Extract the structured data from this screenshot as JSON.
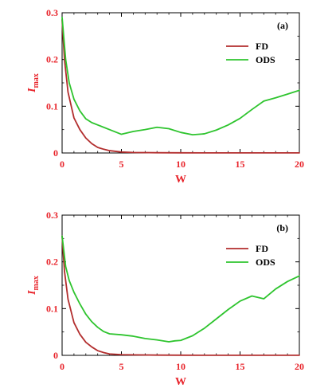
{
  "colors": {
    "axis": "#e8232a",
    "fd": "#b22d2d",
    "ods": "#2ec42e",
    "frame": "#000000"
  },
  "chart_data": [
    {
      "type": "line",
      "panel_label": "(a)",
      "xlabel": "W",
      "ylabel_main": "I",
      "ylabel_sub": "max",
      "xlim": [
        0,
        20
      ],
      "ylim": [
        0,
        0.3
      ],
      "xticks": [
        0,
        5,
        10,
        15,
        20
      ],
      "yticks": [
        0,
        0.1,
        0.2,
        0.3
      ],
      "xtick_labels": [
        "0",
        "5",
        "10",
        "15",
        "20"
      ],
      "ytick_labels": [
        "0",
        "0.1",
        "0.2",
        "0.3"
      ],
      "legend_position": "top-right",
      "series": [
        {
          "name": "FD",
          "color_key": "fd",
          "x": [
            0,
            0.2,
            0.5,
            1,
            1.5,
            2,
            2.5,
            3,
            3.5,
            4,
            5,
            6,
            8,
            10,
            15,
            20
          ],
          "y": [
            0.285,
            0.2,
            0.13,
            0.075,
            0.05,
            0.032,
            0.02,
            0.012,
            0.008,
            0.005,
            0.002,
            0.001,
            0.0005,
            0.0003,
            0.0002,
            0.0002
          ]
        },
        {
          "name": "ODS",
          "color_key": "ods",
          "x": [
            0,
            0.3,
            0.6,
            1,
            1.5,
            2,
            2.5,
            3,
            4,
            5,
            5.5,
            6,
            7,
            8,
            9,
            10,
            11,
            12,
            13,
            14,
            15,
            16,
            17,
            18,
            19,
            20
          ],
          "y": [
            0.29,
            0.2,
            0.15,
            0.115,
            0.09,
            0.073,
            0.065,
            0.06,
            0.05,
            0.04,
            0.043,
            0.046,
            0.05,
            0.055,
            0.052,
            0.044,
            0.039,
            0.041,
            0.049,
            0.06,
            0.074,
            0.093,
            0.111,
            0.118,
            0.126,
            0.134
          ]
        }
      ]
    },
    {
      "type": "line",
      "panel_label": "(b)",
      "xlabel": "W",
      "ylabel_main": "I",
      "ylabel_sub": "max",
      "xlim": [
        0,
        20
      ],
      "ylim": [
        0,
        0.3
      ],
      "xticks": [
        0,
        5,
        10,
        15,
        20
      ],
      "yticks": [
        0,
        0.1,
        0.2,
        0.3
      ],
      "xtick_labels": [
        "0",
        "5",
        "10",
        "15",
        "20"
      ],
      "ytick_labels": [
        "0",
        "0.1",
        "0.2",
        "0.3"
      ],
      "legend_position": "top-right",
      "series": [
        {
          "name": "FD",
          "color_key": "fd",
          "x": [
            0,
            0.2,
            0.5,
            1,
            1.5,
            2,
            2.5,
            3,
            3.5,
            4,
            5,
            6,
            8,
            10,
            15,
            20
          ],
          "y": [
            0.255,
            0.18,
            0.12,
            0.07,
            0.045,
            0.028,
            0.018,
            0.01,
            0.006,
            0.003,
            0.0015,
            0.001,
            0.0005,
            0.0003,
            0.0002,
            0.0002
          ]
        },
        {
          "name": "ODS",
          "color_key": "ods",
          "x": [
            0,
            0.3,
            0.6,
            1,
            1.5,
            2,
            2.5,
            3,
            3.5,
            4,
            5,
            6,
            7,
            8,
            9,
            9.5,
            10,
            11,
            12,
            13,
            14,
            15,
            16,
            17,
            18,
            19,
            20
          ],
          "y": [
            0.255,
            0.19,
            0.16,
            0.135,
            0.11,
            0.088,
            0.072,
            0.06,
            0.051,
            0.046,
            0.044,
            0.041,
            0.036,
            0.033,
            0.029,
            0.031,
            0.032,
            0.042,
            0.058,
            0.078,
            0.098,
            0.116,
            0.127,
            0.121,
            0.142,
            0.158,
            0.17
          ]
        }
      ]
    }
  ]
}
